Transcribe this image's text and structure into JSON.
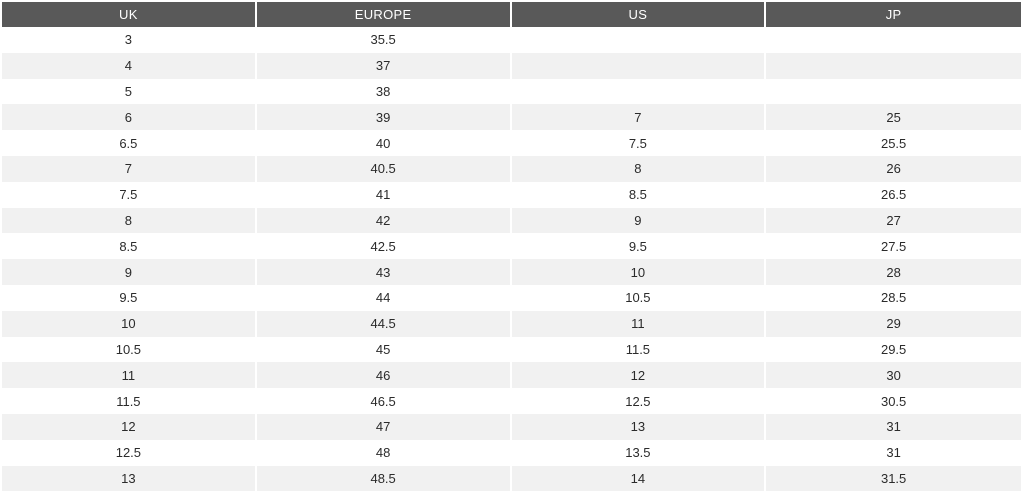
{
  "table": {
    "headers": [
      "UK",
      "EUROPE",
      "US",
      "JP"
    ],
    "rows": [
      [
        "3",
        "35.5",
        "",
        ""
      ],
      [
        "4",
        "37",
        "",
        ""
      ],
      [
        "5",
        "38",
        "",
        ""
      ],
      [
        "6",
        "39",
        "7",
        "25"
      ],
      [
        "6.5",
        "40",
        "7.5",
        "25.5"
      ],
      [
        "7",
        "40.5",
        "8",
        "26"
      ],
      [
        "7.5",
        "41",
        "8.5",
        "26.5"
      ],
      [
        "8",
        "42",
        "9",
        "27"
      ],
      [
        "8.5",
        "42.5",
        "9.5",
        "27.5"
      ],
      [
        "9",
        "43",
        "10",
        "28"
      ],
      [
        "9.5",
        "44",
        "10.5",
        "28.5"
      ],
      [
        "10",
        "44.5",
        "11",
        "29"
      ],
      [
        "10.5",
        "45",
        "11.5",
        "29.5"
      ],
      [
        "11",
        "46",
        "12",
        "30"
      ],
      [
        "11.5",
        "46.5",
        "12.5",
        "30.5"
      ],
      [
        "12",
        "47",
        "13",
        "31"
      ],
      [
        "12.5",
        "48",
        "13.5",
        "31"
      ],
      [
        "13",
        "48.5",
        "14",
        "31.5"
      ]
    ]
  },
  "colors": {
    "header_bg": "#595959",
    "header_text": "#ffffff",
    "row_alt": "#f1f1f1"
  }
}
